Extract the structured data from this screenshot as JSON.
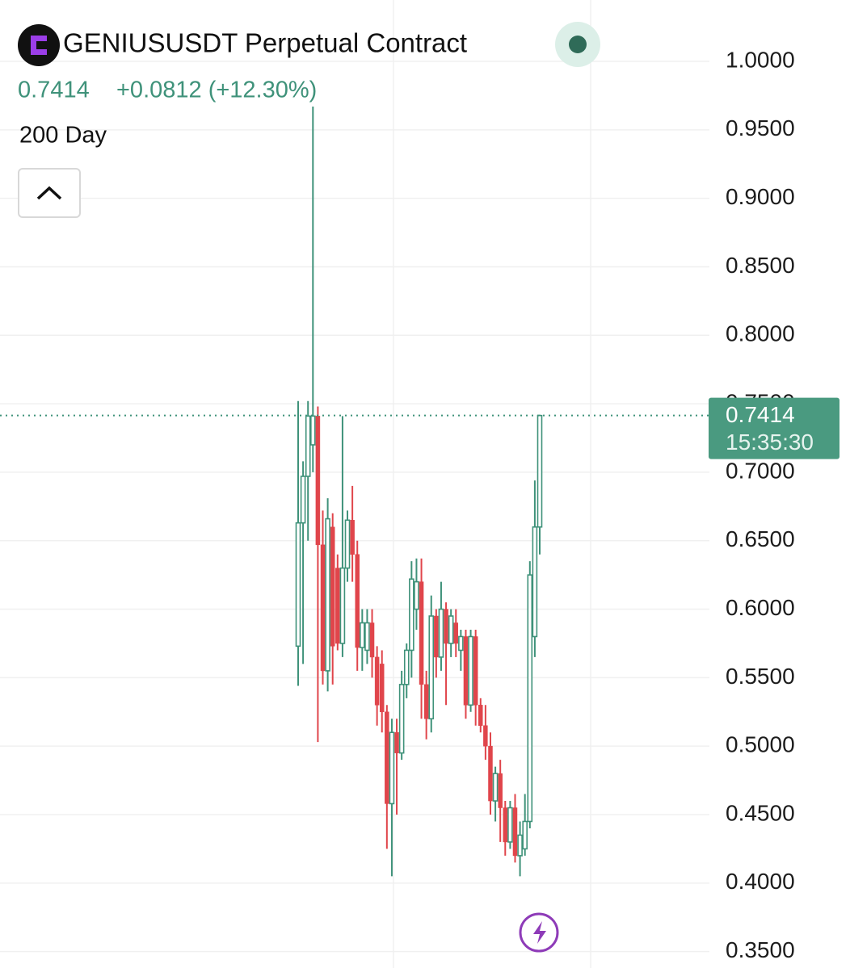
{
  "chart_data": {
    "type": "candlestick",
    "title": "GENIUSUSDT Perpetual Contract",
    "last_price": 0.7414,
    "change_label": "+0.0812 (+12.30%)",
    "indicator": "200 Day",
    "countdown": "15:35:30",
    "up_color": "#3f927a",
    "down_color": "#e0454b",
    "ylim": [
      0.338,
      1.0448
    ],
    "yticks": [
      {
        "value": 0.35,
        "label": "0.3500"
      },
      {
        "value": 0.4,
        "label": "0.4000"
      },
      {
        "value": 0.45,
        "label": "0.4500"
      },
      {
        "value": 0.5,
        "label": "0.5000"
      },
      {
        "value": 0.55,
        "label": "0.5500"
      },
      {
        "value": 0.6,
        "label": "0.6000"
      },
      {
        "value": 0.65,
        "label": "0.6500"
      },
      {
        "value": 0.7,
        "label": "0.7000"
      },
      {
        "value": 0.75,
        "label": "0.7500"
      },
      {
        "value": 0.8,
        "label": "0.8000"
      },
      {
        "value": 0.85,
        "label": "0.8500"
      },
      {
        "value": 0.9,
        "label": "0.9000"
      },
      {
        "value": 0.95,
        "label": "0.9500"
      },
      {
        "value": 1.0,
        "label": "1.0000"
      }
    ],
    "grid": true,
    "open": [
      0.573,
      0.663,
      0.697,
      0.72,
      0.741,
      0.647,
      0.555,
      0.66,
      0.63,
      0.575,
      0.63,
      0.665,
      0.64,
      0.572,
      0.57,
      0.59,
      0.565,
      0.56,
      0.525,
      0.458,
      0.51,
      0.495,
      0.545,
      0.57,
      0.6,
      0.62,
      0.545,
      0.52,
      0.595,
      0.565,
      0.6,
      0.575,
      0.59,
      0.57,
      0.58,
      0.53,
      0.58,
      0.53,
      0.515,
      0.5,
      0.46,
      0.48,
      0.455,
      0.43,
      0.455,
      0.42,
      0.425,
      0.445,
      0.58,
      0.66
    ],
    "high": [
      0.752,
      0.708,
      0.752,
      0.967,
      0.748,
      0.672,
      0.681,
      0.67,
      0.64,
      0.741,
      0.672,
      0.69,
      0.65,
      0.6,
      0.6,
      0.6,
      0.573,
      0.57,
      0.53,
      0.52,
      0.52,
      0.555,
      0.575,
      0.635,
      0.637,
      0.637,
      0.555,
      0.61,
      0.6,
      0.62,
      0.605,
      0.6,
      0.6,
      0.585,
      0.585,
      0.585,
      0.585,
      0.535,
      0.53,
      0.51,
      0.485,
      0.49,
      0.46,
      0.46,
      0.465,
      0.445,
      0.465,
      0.635,
      0.694,
      0.742
    ],
    "low": [
      0.544,
      0.56,
      0.65,
      0.7,
      0.503,
      0.545,
      0.54,
      0.545,
      0.57,
      0.565,
      0.62,
      0.62,
      0.555,
      0.555,
      0.56,
      0.55,
      0.515,
      0.51,
      0.425,
      0.405,
      0.45,
      0.49,
      0.535,
      0.55,
      0.585,
      0.52,
      0.505,
      0.51,
      0.55,
      0.555,
      0.53,
      0.565,
      0.565,
      0.555,
      0.52,
      0.525,
      0.515,
      0.51,
      0.49,
      0.45,
      0.445,
      0.43,
      0.42,
      0.425,
      0.415,
      0.405,
      0.42,
      0.44,
      0.565,
      0.64
    ],
    "close": [
      0.663,
      0.697,
      0.741,
      0.741,
      0.647,
      0.555,
      0.666,
      0.573,
      0.575,
      0.63,
      0.665,
      0.64,
      0.572,
      0.59,
      0.59,
      0.565,
      0.53,
      0.525,
      0.458,
      0.51,
      0.495,
      0.545,
      0.57,
      0.622,
      0.62,
      0.545,
      0.52,
      0.595,
      0.565,
      0.6,
      0.575,
      0.595,
      0.575,
      0.58,
      0.53,
      0.58,
      0.53,
      0.515,
      0.5,
      0.46,
      0.48,
      0.455,
      0.43,
      0.455,
      0.42,
      0.435,
      0.445,
      0.625,
      0.66,
      0.7414
    ]
  }
}
